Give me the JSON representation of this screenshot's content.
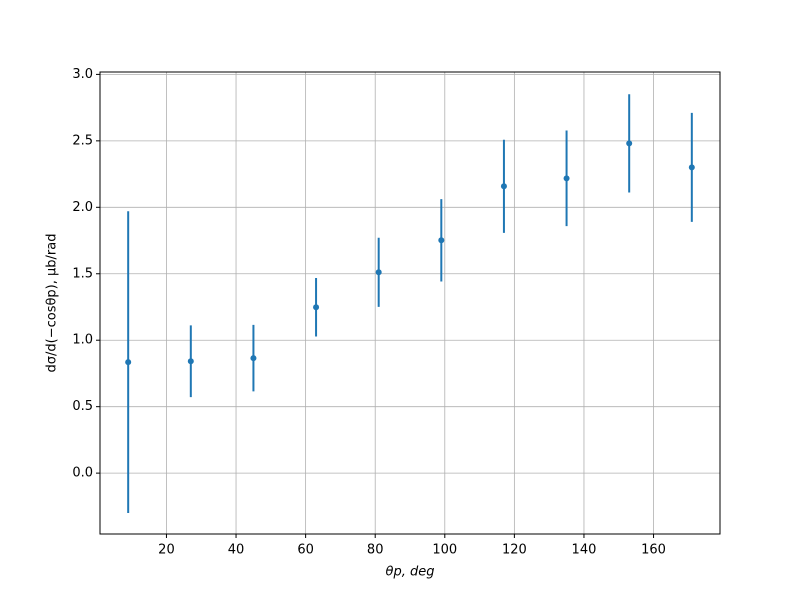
{
  "chart_data": {
    "type": "errorbar",
    "x_label": "θp, deg",
    "y_label": "dσ/d(−cosθp), μb/rad",
    "x": [
      9,
      27,
      45,
      63,
      81,
      99,
      117,
      135,
      153,
      171
    ],
    "series": [
      {
        "color": "#1f77b4",
        "values": [
          0.835,
          0.842,
          0.865,
          1.248,
          1.511,
          1.752,
          2.158,
          2.218,
          2.481,
          2.3
        ],
        "errors": [
          1.135,
          0.27,
          0.25,
          0.22,
          0.26,
          0.31,
          0.35,
          0.36,
          0.37,
          0.41
        ]
      }
    ],
    "xlim": [
      0.9,
      179.1
    ],
    "ylim": [
      -0.458,
      3.018
    ],
    "xticks": [
      20,
      40,
      60,
      80,
      100,
      120,
      140,
      160
    ],
    "yticks": [
      {
        "value": 0,
        "label": "0.0"
      },
      0.5,
      {
        "value": 1,
        "label": "1.0"
      },
      1.5,
      {
        "value": 2,
        "label": "2.0"
      },
      2.5,
      {
        "value": 3,
        "label": "3.0"
      }
    ],
    "grid": true
  }
}
